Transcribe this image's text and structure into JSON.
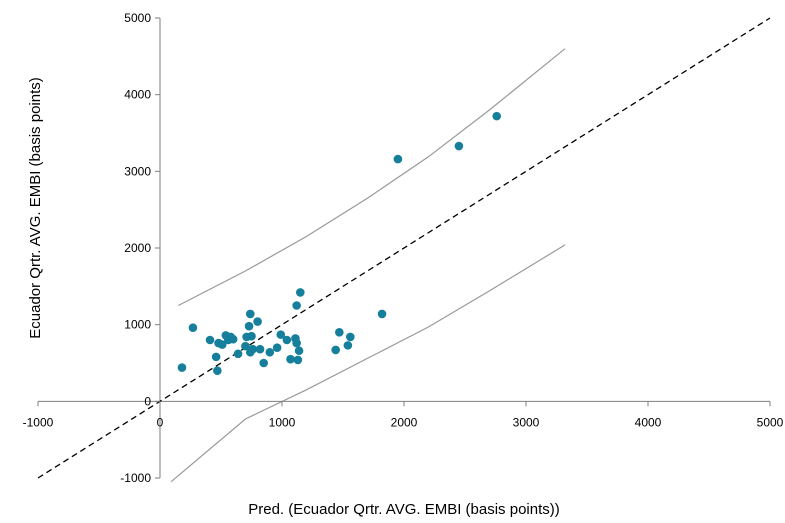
{
  "chart_data": {
    "type": "scatter",
    "title": "",
    "xlabel": "Pred. (Ecuador Qrtr. AVG. EMBI (basis points))",
    "ylabel": "Ecuador Qrtr. AVG. EMBI (basis points)",
    "xlim": [
      -1000,
      5000
    ],
    "ylim": [
      -1000,
      5000
    ],
    "xticks": [
      -1000,
      0,
      1000,
      2000,
      3000,
      4000,
      5000
    ],
    "yticks": [
      -1000,
      0,
      1000,
      2000,
      3000,
      4000,
      5000
    ],
    "xtick_labels": [
      "-1000",
      "0",
      "1000",
      "2000",
      "3000",
      "4000",
      "5000"
    ],
    "ytick_labels": [
      "-1000",
      "0",
      "1000",
      "2000",
      "3000",
      "4000",
      "5000"
    ],
    "grid": false,
    "point_color": "#167f9b",
    "diagonal": {
      "x": [
        -1000,
        5000
      ],
      "y": [
        -1000,
        5000
      ],
      "style": "dashed",
      "color": "#000000"
    },
    "upper_band": {
      "color": "#999999",
      "x": [
        150,
        700,
        1200,
        1700,
        2200,
        2700,
        3320
      ],
      "y": [
        1250,
        1700,
        2150,
        2650,
        3190,
        3800,
        4600
      ]
    },
    "lower_band": {
      "color": "#999999",
      "x": [
        90,
        700,
        1200,
        1700,
        2200,
        2700,
        3320
      ],
      "y": [
        -1050,
        -230,
        150,
        560,
        970,
        1440,
        2040
      ]
    },
    "points": [
      {
        "x": 180,
        "y": 440
      },
      {
        "x": 270,
        "y": 960
      },
      {
        "x": 410,
        "y": 800
      },
      {
        "x": 460,
        "y": 580
      },
      {
        "x": 470,
        "y": 400
      },
      {
        "x": 480,
        "y": 760
      },
      {
        "x": 510,
        "y": 740
      },
      {
        "x": 540,
        "y": 860
      },
      {
        "x": 560,
        "y": 800
      },
      {
        "x": 580,
        "y": 840
      },
      {
        "x": 600,
        "y": 810
      },
      {
        "x": 640,
        "y": 620
      },
      {
        "x": 700,
        "y": 720
      },
      {
        "x": 710,
        "y": 840
      },
      {
        "x": 730,
        "y": 980
      },
      {
        "x": 740,
        "y": 1140
      },
      {
        "x": 740,
        "y": 640
      },
      {
        "x": 750,
        "y": 850
      },
      {
        "x": 760,
        "y": 680
      },
      {
        "x": 800,
        "y": 1040
      },
      {
        "x": 820,
        "y": 680
      },
      {
        "x": 850,
        "y": 500
      },
      {
        "x": 900,
        "y": 640
      },
      {
        "x": 960,
        "y": 700
      },
      {
        "x": 990,
        "y": 870
      },
      {
        "x": 1040,
        "y": 800
      },
      {
        "x": 1070,
        "y": 550
      },
      {
        "x": 1110,
        "y": 820
      },
      {
        "x": 1120,
        "y": 1250
      },
      {
        "x": 1120,
        "y": 760
      },
      {
        "x": 1130,
        "y": 540
      },
      {
        "x": 1140,
        "y": 660
      },
      {
        "x": 1150,
        "y": 1420
      },
      {
        "x": 1440,
        "y": 670
      },
      {
        "x": 1470,
        "y": 900
      },
      {
        "x": 1540,
        "y": 730
      },
      {
        "x": 1560,
        "y": 840
      },
      {
        "x": 1820,
        "y": 1140
      },
      {
        "x": 1950,
        "y": 3160
      },
      {
        "x": 2450,
        "y": 3330
      },
      {
        "x": 2760,
        "y": 3720
      }
    ]
  }
}
